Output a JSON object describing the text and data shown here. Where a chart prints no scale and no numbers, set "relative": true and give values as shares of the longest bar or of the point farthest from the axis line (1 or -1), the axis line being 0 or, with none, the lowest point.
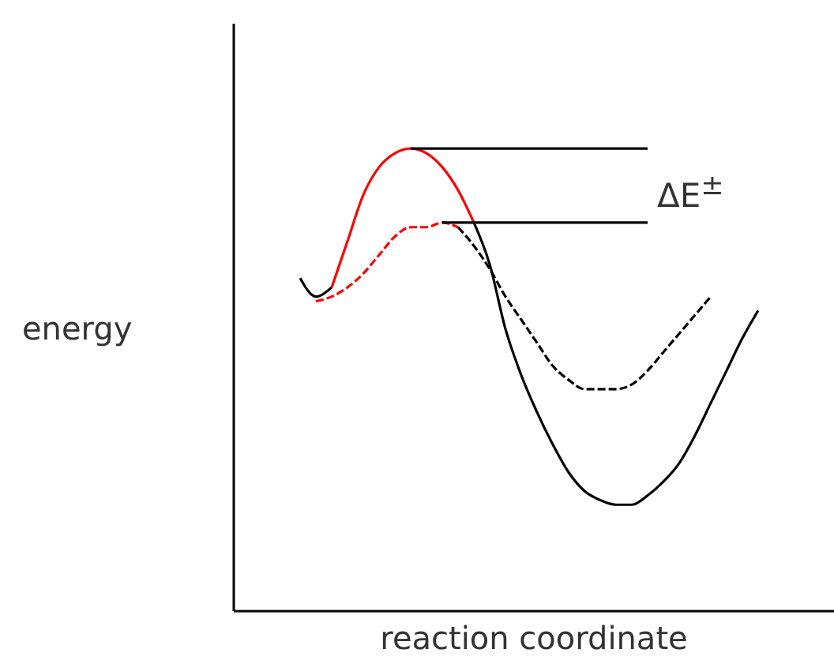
{
  "chart_data": {
    "type": "line",
    "relative": true,
    "xlabel": "reaction coordinate",
    "ylabel": "energy",
    "annotations": [
      "ΔE$^{±}$"
    ],
    "categories": [
      null,
      null,
      null,
      null,
      null,
      null,
      null,
      null,
      null,
      null,
      null,
      null,
      null,
      null,
      null,
      null,
      null,
      null,
      null,
      null,
      null,
      null,
      null,
      null,
      null,
      null,
      null,
      null,
      null,
      null,
      null,
      null,
      null,
      null,
      null,
      null,
      null,
      null
    ],
    "series": [
      {
        "color": "#000000",
        "values": [
          null,
          null,
          null,
          null,
          0.72,
          0.68,
          0.7,
          null,
          null,
          null,
          null,
          null,
          null,
          null,
          null,
          null,
          null,
          null,
          null,
          null,
          null,
          null,
          null,
          null,
          null,
          null,
          null,
          null,
          null,
          null,
          null,
          null,
          null,
          null,
          null,
          null,
          null,
          null
        ]
      },
      {
        "color": "#ff0000",
        "values": [
          null,
          null,
          null,
          null,
          null,
          null,
          0.7,
          0.8,
          0.9,
          0.96,
          0.99,
          1.0,
          0.99,
          0.96,
          0.91,
          0.84,
          null,
          null,
          null,
          null,
          null,
          null,
          null,
          null,
          null,
          null,
          null,
          null,
          null,
          null,
          null,
          null,
          null,
          null,
          null,
          null,
          null,
          null
        ]
      },
      {
        "color": "#000000",
        "values": [
          null,
          null,
          null,
          null,
          null,
          null,
          null,
          null,
          null,
          null,
          null,
          null,
          null,
          null,
          null,
          0.84,
          0.75,
          0.61,
          0.51,
          0.43,
          0.36,
          0.3,
          0.26,
          0.24,
          0.23,
          0.23,
          0.25,
          0.28,
          0.32,
          0.38,
          0.45,
          0.52,
          0.59,
          0.65,
          null,
          null,
          null,
          null
        ]
      },
      {
        "color": "#ff0000",
        "line_style": "dashed",
        "values": [
          null,
          null,
          null,
          null,
          null,
          0.67,
          0.68,
          0.7,
          0.73,
          0.77,
          0.81,
          0.83,
          0.83,
          0.84,
          0.83,
          null,
          null,
          null,
          null,
          null,
          null,
          null,
          null,
          null,
          null,
          null,
          null,
          null,
          null,
          null,
          null,
          null,
          null,
          null,
          null,
          null,
          null,
          null
        ]
      },
      {
        "color": "#000000",
        "line_style": "dashed",
        "values": [
          null,
          null,
          null,
          null,
          null,
          null,
          null,
          null,
          null,
          null,
          null,
          null,
          null,
          null,
          0.83,
          0.79,
          0.74,
          0.68,
          0.63,
          0.58,
          0.53,
          0.5,
          0.48,
          0.48,
          0.48,
          0.49,
          0.52,
          0.56,
          0.6,
          0.64,
          0.68,
          null,
          null,
          null,
          null,
          null,
          null,
          null
        ]
      },
      {
        "color": "#000000",
        "values": [
          null,
          null,
          null,
          null,
          null,
          null,
          null,
          null,
          null,
          null,
          null,
          1.0,
          1.0,
          1.0,
          1.0,
          1.0,
          1.0,
          1.0,
          1.0,
          1.0,
          1.0,
          1.0,
          1.0,
          1.0,
          1.0,
          1.0,
          1.0,
          null,
          null,
          null,
          null,
          null,
          null,
          null,
          null,
          null,
          null,
          null
        ]
      },
      {
        "color": "#000000",
        "values": [
          null,
          null,
          null,
          null,
          null,
          null,
          null,
          null,
          null,
          null,
          null,
          null,
          null,
          0.84,
          0.84,
          0.84,
          0.84,
          0.84,
          0.84,
          0.84,
          0.84,
          0.84,
          0.84,
          0.84,
          0.84,
          0.84,
          0.84,
          null,
          null,
          null,
          null,
          null,
          null,
          null,
          null,
          null,
          null,
          null
        ]
      }
    ]
  }
}
